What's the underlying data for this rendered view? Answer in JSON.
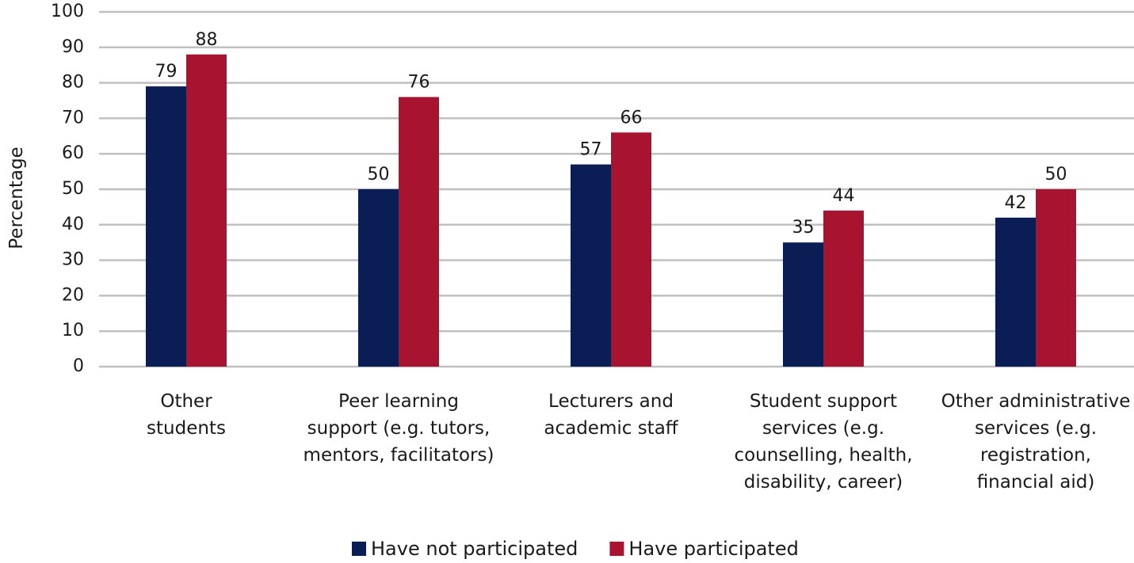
{
  "chart_data": {
    "type": "bar",
    "y_label": "Percentage",
    "categories": [
      "Other\nstudents",
      "Peer learning\nsupport (e.g. tutors,\nmentors, facilitators)",
      "Lecturers and\nacademic staff",
      "Student support\nservices (e.g.\ncounselling, health,\ndisability, career)",
      "Other administrative\nservices (e.g.\nregistration,\nfinancial aid)"
    ],
    "series": [
      {
        "name": "Have not participated",
        "color": "#0b1d55",
        "values": [
          79,
          50,
          57,
          35,
          42
        ]
      },
      {
        "name": "Have participated",
        "color": "#a8142f",
        "values": [
          88,
          76,
          66,
          44,
          50
        ]
      }
    ],
    "ylim": [
      0,
      100
    ],
    "yticks": [
      0,
      10,
      20,
      30,
      40,
      50,
      60,
      70,
      80,
      90,
      100
    ],
    "grid": true,
    "legend": "bottom"
  }
}
